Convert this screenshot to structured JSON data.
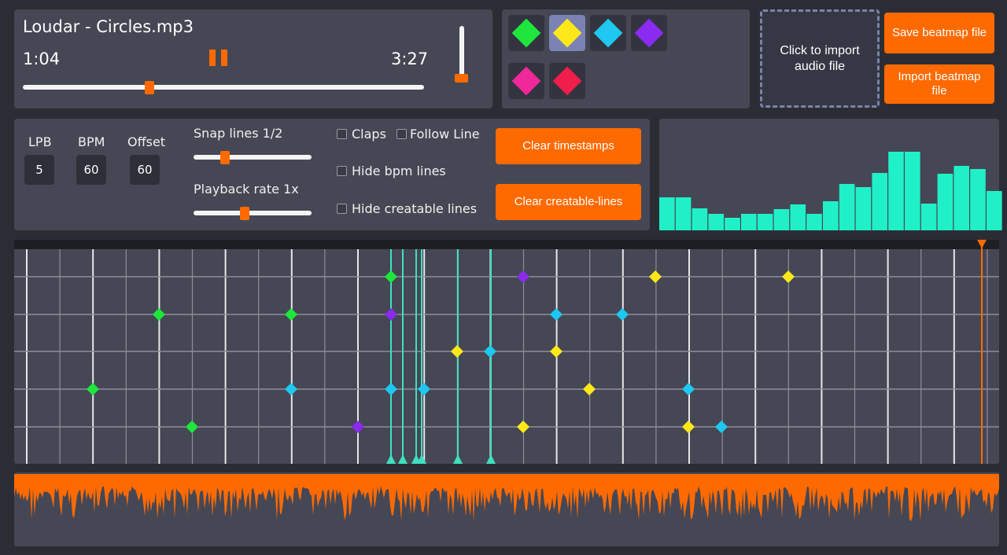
{
  "player": {
    "title": "Loudar - Circles.mp3",
    "current_time": "1:04",
    "duration": "3:27"
  },
  "import_audio": {
    "label": "Click to import audio file"
  },
  "buttons": {
    "save": "Save beatmap file",
    "import": "Import beatmap file",
    "clear_timestamps": "Clear timestamps",
    "clear_lines": "Clear creatable-lines"
  },
  "settings": {
    "lpb": {
      "label": "LPB",
      "value": 5
    },
    "bpm": {
      "label": "BPM",
      "value": 60
    },
    "offset": {
      "label": "Offset",
      "value": 60
    },
    "snap_lines": "Snap lines 1/2",
    "playback_rate": "Playback rate 1x"
  },
  "options": [
    "Claps",
    "Follow Line",
    "Hide bpm lines",
    "Hide creatable lines"
  ]
}
